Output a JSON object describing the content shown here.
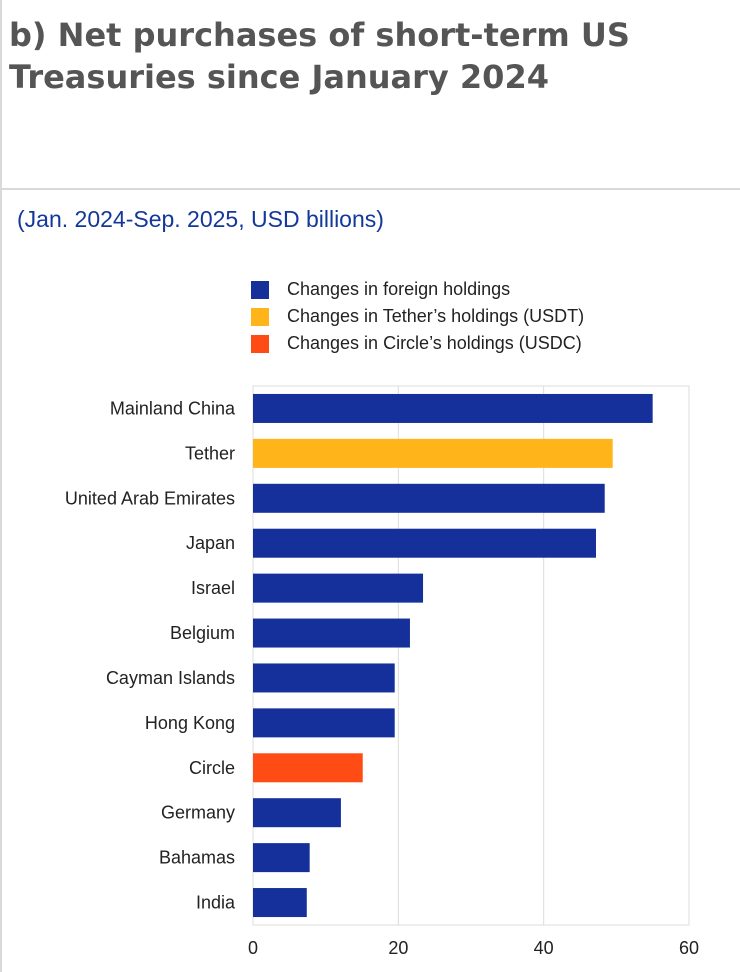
{
  "title": "b) Net purchases of short-term US Treasuries since January 2024",
  "subtitle": "(Jan. 2024-Sep. 2025, USD billions)",
  "colors": {
    "foreign": "#15309a",
    "tether": "#ffb41a",
    "circle": "#ff4b14"
  },
  "chart_data": {
    "type": "bar",
    "orientation": "horizontal",
    "title": "b) Net purchases of short-term US Treasuries since January 2024",
    "subtitle": "(Jan. 2024-Sep. 2025, USD billions)",
    "legend": [
      {
        "key": "foreign",
        "label": "Changes in foreign holdings"
      },
      {
        "key": "tether",
        "label": "Changes in Tether’s holdings (USDT)"
      },
      {
        "key": "circle",
        "label": "Changes in Circle’s holdings (USDC)"
      }
    ],
    "legend_position": "top",
    "categories": [
      "Mainland China",
      "Tether",
      "United Arab Emirates",
      "Japan",
      "Israel",
      "Belgium",
      "Cayman Islands",
      "Hong Kong",
      "Circle",
      "Germany",
      "Bahamas",
      "India"
    ],
    "values": [
      55.0,
      49.5,
      48.4,
      47.2,
      23.4,
      21.6,
      19.5,
      19.5,
      15.1,
      12.1,
      7.8,
      7.4
    ],
    "series_keys": [
      "foreign",
      "tether",
      "foreign",
      "foreign",
      "foreign",
      "foreign",
      "foreign",
      "foreign",
      "circle",
      "foreign",
      "foreign",
      "foreign"
    ],
    "xlim": [
      0,
      60
    ],
    "xticks": [
      0,
      20,
      40,
      60
    ],
    "grid": true,
    "xlabel": "",
    "ylabel": ""
  }
}
